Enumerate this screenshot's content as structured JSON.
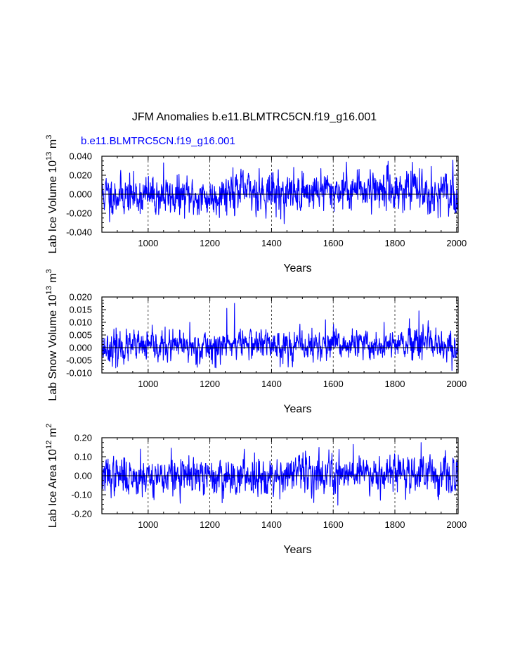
{
  "figure": {
    "title": "JFM Anomalies b.e11.BLMTRC5CN.f19_g16.001",
    "case_label": "b.e11.BLMTRC5CN.f19_g16.001"
  },
  "chart_data": [
    {
      "type": "line",
      "ylabel": "Lab Ice Volume 10",
      "ylabel_exp": "13",
      "ylabel_unit": " m",
      "ylabel_unit_exp": "3",
      "xlabel": "Years",
      "xlim": [
        850,
        2005
      ],
      "ylim": [
        -0.04,
        0.04
      ],
      "xticks": [
        1000,
        1200,
        1400,
        1600,
        1800,
        2000
      ],
      "yticks": [
        -0.04,
        -0.02,
        0.0,
        0.02,
        0.04
      ],
      "ytick_labels": [
        "-0.040",
        "-0.020",
        "0.000",
        "0.020",
        "0.040"
      ],
      "series": [
        {
          "name": "b.e11.BLMTRC5CN.f19_g16.001",
          "color": "#0000ff",
          "x_start": 850,
          "x_end": 2005,
          "amplitude": 0.0095,
          "seed": 11,
          "peaks": [
            [
              1050,
              0.033
            ],
            [
              875,
              -0.029
            ],
            [
              1275,
              0.028
            ],
            [
              1560,
              0.027
            ],
            [
              1880,
              0.027
            ],
            [
              1360,
              0.027
            ],
            [
              1430,
              -0.026
            ],
            [
              1720,
              0.026
            ],
            [
              1940,
              -0.025
            ]
          ],
          "trend": [
            [
              850,
              0.0
            ],
            [
              1200,
              -0.004
            ],
            [
              1260,
              0.004
            ],
            [
              1450,
              0.001
            ],
            [
              1550,
              0.003
            ],
            [
              1700,
              0.006
            ],
            [
              1900,
              0.004
            ],
            [
              2005,
              -0.002
            ]
          ]
        }
      ]
    },
    {
      "type": "line",
      "ylabel": "Lab Snow Volume 10",
      "ylabel_exp": "13",
      "ylabel_unit": " m",
      "ylabel_unit_exp": "3",
      "xlabel": "Years",
      "xlim": [
        850,
        2005
      ],
      "ylim": [
        -0.01,
        0.02
      ],
      "xticks": [
        1000,
        1200,
        1400,
        1600,
        1800,
        2000
      ],
      "yticks": [
        -0.01,
        -0.005,
        0.0,
        0.005,
        0.01,
        0.015,
        0.02
      ],
      "ytick_labels": [
        "-0.010",
        "-0.005",
        "0.000",
        "0.005",
        "0.010",
        "0.015",
        "0.020"
      ],
      "series": [
        {
          "name": "b.e11.BLMTRC5CN.f19_g16.001",
          "color": "#0000ff",
          "x_start": 850,
          "x_end": 2005,
          "amplitude": 0.0028,
          "seed": 23,
          "peaks": [
            [
              1280,
              0.0175
            ],
            [
              1255,
              0.0155
            ],
            [
              1878,
              0.0145
            ],
            [
              1575,
              0.011
            ],
            [
              1765,
              0.01
            ],
            [
              1135,
              0.01
            ],
            [
              1985,
              -0.009
            ],
            [
              1220,
              -0.008
            ],
            [
              895,
              -0.008
            ]
          ],
          "trend": [
            [
              850,
              0.0
            ],
            [
              1250,
              0.0005
            ],
            [
              1300,
              0.002
            ],
            [
              1500,
              0.0005
            ],
            [
              1650,
              0.001
            ],
            [
              1900,
              0.001
            ],
            [
              2005,
              -0.001
            ]
          ]
        }
      ]
    },
    {
      "type": "line",
      "ylabel": "Lab Ice Area 10",
      "ylabel_exp": "12",
      "ylabel_unit": " m",
      "ylabel_unit_exp": "2",
      "xlabel": "Years",
      "xlim": [
        850,
        2005
      ],
      "ylim": [
        -0.2,
        0.2
      ],
      "xticks": [
        1000,
        1200,
        1400,
        1600,
        1800,
        2000
      ],
      "yticks": [
        -0.2,
        -0.1,
        0.0,
        0.1,
        0.2
      ],
      "ytick_labels": [
        "-0.20",
        "-0.10",
        "0.00",
        "0.10",
        "0.20"
      ],
      "series": [
        {
          "name": "b.e11.BLMTRC5CN.f19_g16.001",
          "color": "#0000ff",
          "x_start": 850,
          "x_end": 2005,
          "amplitude": 0.045,
          "seed": 37,
          "peaks": [
            [
              1885,
              0.175
            ],
            [
              1665,
              0.165
            ],
            [
              1615,
              -0.155
            ],
            [
              1835,
              -0.125
            ],
            [
              1075,
              0.145
            ],
            [
              975,
              0.14
            ],
            [
              1245,
              -0.12
            ],
            [
              1345,
              0.12
            ],
            [
              1510,
              0.13
            ]
          ],
          "trend": [
            [
              850,
              0.0
            ],
            [
              1200,
              -0.01
            ],
            [
              1400,
              0.005
            ],
            [
              1650,
              0.02
            ],
            [
              1900,
              0.02
            ],
            [
              2005,
              -0.02
            ]
          ]
        }
      ]
    }
  ]
}
